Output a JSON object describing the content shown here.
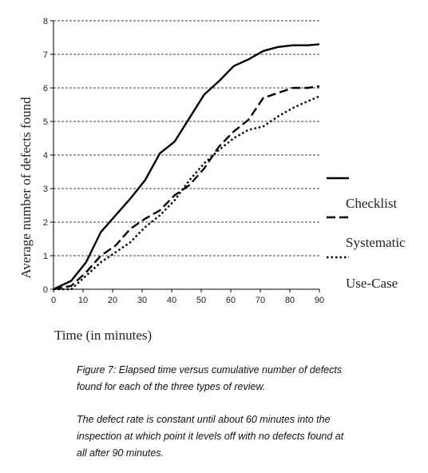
{
  "chart_data": {
    "type": "line",
    "xlabel": "Time (in minutes)",
    "ylabel": "Average number of defects found",
    "xlim": [
      0,
      90
    ],
    "ylim": [
      0,
      8
    ],
    "xticks": [
      "0",
      "10",
      "20",
      "30",
      "40",
      "50",
      "60",
      "70",
      "80",
      "90"
    ],
    "yticks": [
      "0",
      "1",
      "2",
      "3",
      "4",
      "5",
      "6",
      "7",
      "8"
    ],
    "grid": "horizontal dashed",
    "legend": "right",
    "series": [
      {
        "name": "Checklist",
        "style": "solid",
        "x": [
          0,
          6,
          11,
          16,
          21,
          26,
          31,
          36,
          41,
          46,
          51,
          56,
          61,
          66,
          71,
          76,
          81,
          86,
          90
        ],
        "y": [
          0.0,
          0.25,
          0.8,
          1.7,
          2.2,
          2.7,
          3.25,
          4.05,
          4.4,
          5.1,
          5.8,
          6.2,
          6.65,
          6.85,
          7.1,
          7.22,
          7.27,
          7.27,
          7.3
        ]
      },
      {
        "name": "Systematic",
        "style": "dashed",
        "x": [
          0,
          6,
          11,
          16,
          21,
          26,
          31,
          36,
          41,
          46,
          51,
          56,
          61,
          66,
          71,
          76,
          81,
          86,
          90
        ],
        "y": [
          0.0,
          0.1,
          0.5,
          1.0,
          1.3,
          1.8,
          2.1,
          2.35,
          2.8,
          3.1,
          3.6,
          4.25,
          4.7,
          5.05,
          5.7,
          5.85,
          6.0,
          6.0,
          6.05
        ]
      },
      {
        "name": "Use-Case",
        "style": "dotted",
        "x": [
          0,
          6,
          11,
          16,
          21,
          26,
          31,
          36,
          41,
          46,
          51,
          56,
          61,
          66,
          71,
          76,
          81,
          86,
          90
        ],
        "y": [
          0.0,
          0.0,
          0.4,
          0.8,
          1.1,
          1.4,
          1.85,
          2.2,
          2.65,
          3.25,
          3.75,
          4.15,
          4.5,
          4.75,
          4.85,
          5.15,
          5.4,
          5.6,
          5.75
        ]
      }
    ]
  },
  "caption": {
    "line1": "Figure 7: Elapsed time versus cumulative number of defects found for each of the three types of review.",
    "line2": "The defect rate is constant until about 60 minutes into the inspection at which point it levels off with no defects found at all after 90 minutes."
  }
}
